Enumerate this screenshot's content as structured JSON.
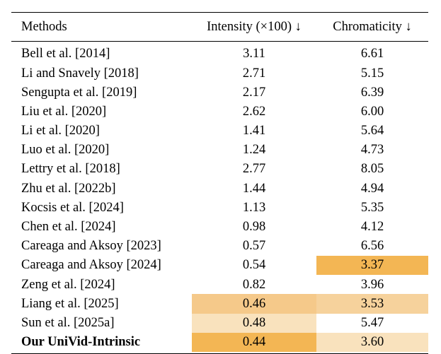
{
  "table": {
    "headers": {
      "method": "Methods",
      "intensity": "Intensity (×100) ↓",
      "chromaticity": "Chromaticity ↓"
    },
    "rows": [
      {
        "method": "Bell et al. [2014]",
        "intensity": "3.11",
        "chromaticity": "6.61",
        "intensity_bg": "",
        "chromaticity_bg": "",
        "bold": false
      },
      {
        "method": "Li and Snavely [2018]",
        "intensity": "2.71",
        "chromaticity": "5.15",
        "intensity_bg": "",
        "chromaticity_bg": "",
        "bold": false
      },
      {
        "method": "Sengupta et al. [2019]",
        "intensity": "2.17",
        "chromaticity": "6.39",
        "intensity_bg": "",
        "chromaticity_bg": "",
        "bold": false
      },
      {
        "method": "Liu et al. [2020]",
        "intensity": "2.62",
        "chromaticity": "6.00",
        "intensity_bg": "",
        "chromaticity_bg": "",
        "bold": false
      },
      {
        "method": "Li et al. [2020]",
        "intensity": "1.41",
        "chromaticity": "5.64",
        "intensity_bg": "",
        "chromaticity_bg": "",
        "bold": false
      },
      {
        "method": "Luo et al. [2020]",
        "intensity": "1.24",
        "chromaticity": "4.73",
        "intensity_bg": "",
        "chromaticity_bg": "",
        "bold": false
      },
      {
        "method": "Lettry et al. [2018]",
        "intensity": "2.77",
        "chromaticity": "8.05",
        "intensity_bg": "",
        "chromaticity_bg": "",
        "bold": false
      },
      {
        "method": "Zhu et al. [2022b]",
        "intensity": "1.44",
        "chromaticity": "4.94",
        "intensity_bg": "",
        "chromaticity_bg": "",
        "bold": false
      },
      {
        "method": "Kocsis et al. [2024]",
        "intensity": "1.13",
        "chromaticity": "5.35",
        "intensity_bg": "",
        "chromaticity_bg": "",
        "bold": false
      },
      {
        "method": "Chen et al. [2024]",
        "intensity": "0.98",
        "chromaticity": "4.12",
        "intensity_bg": "",
        "chromaticity_bg": "",
        "bold": false
      },
      {
        "method": "Careaga and Aksoy [2023]",
        "intensity": "0.57",
        "chromaticity": "6.56",
        "intensity_bg": "",
        "chromaticity_bg": "",
        "bold": false
      },
      {
        "method": "Careaga and Aksoy [2024]",
        "intensity": "0.54",
        "chromaticity": "3.37",
        "intensity_bg": "",
        "chromaticity_bg": "#f3b654",
        "bold": false
      },
      {
        "method": "Zeng et al. [2024]",
        "intensity": "0.82",
        "chromaticity": "3.96",
        "intensity_bg": "",
        "chromaticity_bg": "",
        "bold": false
      },
      {
        "method": "Liang et al. [2025]",
        "intensity": "0.46",
        "chromaticity": "3.53",
        "intensity_bg": "#f5c98a",
        "chromaticity_bg": "#f6d29c",
        "bold": false
      },
      {
        "method": "Sun et al. [2025a]",
        "intensity": "0.48",
        "chromaticity": "5.47",
        "intensity_bg": "#f9e2bd",
        "chromaticity_bg": "",
        "bold": false
      },
      {
        "method": "Our UniVid-Intrinsic",
        "intensity": "0.44",
        "chromaticity": "3.60",
        "intensity_bg": "#f3b654",
        "chromaticity_bg": "#f9e2bd",
        "bold": true
      }
    ]
  }
}
